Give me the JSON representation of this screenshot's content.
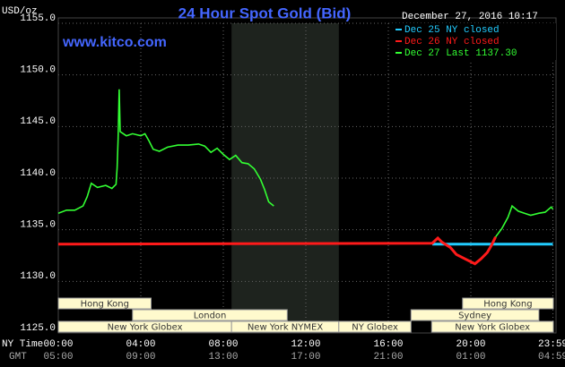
{
  "chart_data": {
    "type": "line",
    "title": "24 Hour Spot Gold (Bid)",
    "unit_label": "USD/oz",
    "watermark": "www.kitco.com",
    "timestamp": "December 27, 2016 10:17",
    "xlim": [
      0,
      24
    ],
    "ylim": [
      1125,
      1155
    ],
    "xticks": [
      {
        "value": 0,
        "label": "00:00"
      },
      {
        "value": 4,
        "label": "04:00"
      },
      {
        "value": 8,
        "label": "08:00"
      },
      {
        "value": 12,
        "label": "12:00"
      },
      {
        "value": 16,
        "label": "16:00"
      },
      {
        "value": 20,
        "label": "20:00"
      },
      {
        "value": 23.98,
        "label": "23:59"
      }
    ],
    "xticks_gmt": [
      "05:00",
      "09:00",
      "13:00",
      "17:00",
      "21:00",
      "01:00",
      "04:59"
    ],
    "x_row_labels": [
      "NY Time",
      "GMT"
    ],
    "yticks": [
      {
        "value": 1125,
        "label": "1125.0"
      },
      {
        "value": 1130,
        "label": "1130.0"
      },
      {
        "value": 1135,
        "label": "1135.0"
      },
      {
        "value": 1140,
        "label": "1140.0"
      },
      {
        "value": 1145,
        "label": "1145.0"
      },
      {
        "value": 1150,
        "label": "1150.0"
      },
      {
        "value": 1155,
        "label": "1155.0"
      }
    ],
    "grid": true,
    "highlight": [
      8.4,
      13.6
    ],
    "series": [
      {
        "name": "Dec 25 NY closed",
        "color": "#22ccff",
        "x": [
          18.13,
          23.98
        ],
        "values": [
          1133.6,
          1133.6
        ]
      },
      {
        "name": "Dec 26 NY closed",
        "color": "#ff1a1a",
        "x": [
          0,
          18.13,
          18.4,
          18.6,
          19.0,
          19.3,
          19.6,
          19.9,
          20.2,
          20.5,
          20.8,
          21.0,
          21.2
        ],
        "values": [
          1133.6,
          1133.7,
          1134.2,
          1133.8,
          1133.3,
          1132.6,
          1132.3,
          1132.0,
          1131.7,
          1132.2,
          1132.8,
          1133.5,
          1134.3
        ]
      },
      {
        "name": "Dec 27 Last 1137.30",
        "color": "#33ff33",
        "x": [
          0,
          0.4,
          0.8,
          1.2,
          1.4,
          1.6,
          1.9,
          2.3,
          2.6,
          2.8,
          2.85,
          2.9,
          2.95,
          3.0,
          3.3,
          3.6,
          4.0,
          4.2,
          4.4,
          4.6,
          4.9,
          5.3,
          5.8,
          6.3,
          6.8,
          7.1,
          7.4,
          7.7,
          8.0,
          8.3,
          8.6,
          8.9,
          9.2,
          9.5,
          9.8,
          10.0,
          10.2,
          10.45,
          null,
          21.2,
          21.5,
          21.8,
          22.0,
          22.3,
          22.6,
          22.9,
          23.3,
          23.6,
          23.9,
          23.98
        ],
        "values": [
          1136.6,
          1136.9,
          1136.9,
          1137.3,
          1138.2,
          1139.5,
          1139.1,
          1139.3,
          1139.0,
          1139.4,
          1141.0,
          1143.8,
          1148.6,
          1144.5,
          1144.1,
          1144.3,
          1144.1,
          1144.3,
          1143.6,
          1142.8,
          1142.6,
          1143.0,
          1143.2,
          1143.2,
          1143.3,
          1143.1,
          1142.5,
          1142.9,
          1142.3,
          1141.8,
          1142.2,
          1141.5,
          1141.4,
          1140.9,
          1139.9,
          1138.9,
          1137.7,
          1137.3,
          null,
          1134.3,
          1135.1,
          1136.2,
          1137.3,
          1136.8,
          1136.6,
          1136.4,
          1136.6,
          1136.7,
          1137.2,
          1137.0
        ]
      }
    ],
    "session_rows": [
      [
        {
          "label": "Hong Kong",
          "start": 0,
          "end": 4.5
        },
        {
          "label": "Hong Kong",
          "start": 19.6,
          "end": 24
        }
      ],
      [
        {
          "label": "London",
          "start": 3.6,
          "end": 11.1
        },
        {
          "label": "Sydney",
          "start": 17.1,
          "end": 23.3
        }
      ],
      [
        {
          "label": "New York Globex",
          "start": 0,
          "end": 8.4
        },
        {
          "label": "New York NYMEX",
          "start": 8.4,
          "end": 13.6
        },
        {
          "label": "NY Globex",
          "start": 13.6,
          "end": 17.1
        },
        {
          "label": "New York Globex",
          "start": 18.1,
          "end": 24
        }
      ]
    ]
  }
}
